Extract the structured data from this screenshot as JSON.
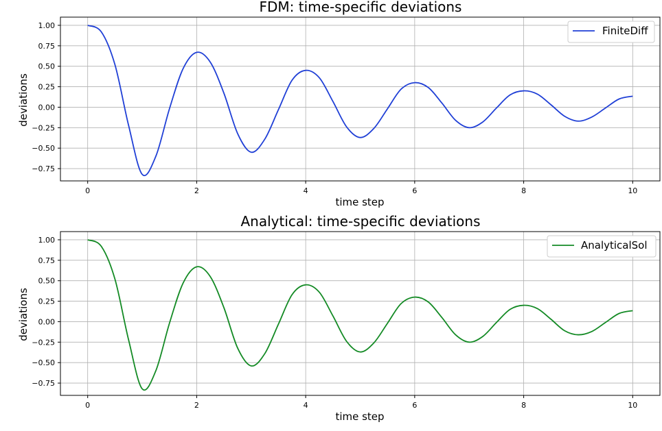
{
  "chart_data": [
    {
      "type": "line",
      "title": "FDM: time-specific deviations",
      "xlabel": "time step",
      "ylabel": "deviations",
      "xlim": [
        -0.5,
        10.5
      ],
      "ylim": [
        -0.9,
        1.1
      ],
      "xticks": [
        "0",
        "2",
        "4",
        "6",
        "8",
        "10"
      ],
      "yticks": [
        "1.00",
        "0.75",
        "0.50",
        "0.25",
        "0.00",
        "−0.25",
        "−0.50",
        "−0.75"
      ],
      "grid": true,
      "legend_position": "top-right",
      "series": [
        {
          "name": "FiniteDiff",
          "color": "#1f3fd6",
          "points": [
            [
              0,
              1.0
            ],
            [
              0.25,
              0.92
            ],
            [
              0.5,
              0.52
            ],
            [
              0.75,
              -0.22
            ],
            [
              1.0,
              -0.82
            ],
            [
              1.25,
              -0.6
            ],
            [
              1.5,
              -0.02
            ],
            [
              1.75,
              0.47
            ],
            [
              2.0,
              0.67
            ],
            [
              2.25,
              0.55
            ],
            [
              2.5,
              0.17
            ],
            [
              2.75,
              -0.32
            ],
            [
              3.0,
              -0.55
            ],
            [
              3.25,
              -0.39
            ],
            [
              3.5,
              -0.03
            ],
            [
              3.75,
              0.33
            ],
            [
              4.0,
              0.45
            ],
            [
              4.25,
              0.36
            ],
            [
              4.5,
              0.07
            ],
            [
              4.75,
              -0.24
            ],
            [
              5.0,
              -0.37
            ],
            [
              5.25,
              -0.26
            ],
            [
              5.5,
              -0.02
            ],
            [
              5.75,
              0.22
            ],
            [
              6.0,
              0.3
            ],
            [
              6.25,
              0.24
            ],
            [
              6.5,
              0.05
            ],
            [
              6.75,
              -0.16
            ],
            [
              7.0,
              -0.25
            ],
            [
              7.25,
              -0.18
            ],
            [
              7.5,
              -0.01
            ],
            [
              7.75,
              0.15
            ],
            [
              8.0,
              0.2
            ],
            [
              8.25,
              0.16
            ],
            [
              8.5,
              0.03
            ],
            [
              8.75,
              -0.11
            ],
            [
              9.0,
              -0.17
            ],
            [
              9.25,
              -0.12
            ],
            [
              9.5,
              -0.01
            ],
            [
              9.75,
              0.1
            ],
            [
              10.0,
              0.135
            ]
          ]
        }
      ]
    },
    {
      "type": "line",
      "title": "Analytical: time-specific deviations",
      "xlabel": "time step",
      "ylabel": "deviations",
      "xlim": [
        -0.5,
        10.5
      ],
      "ylim": [
        -0.9,
        1.1
      ],
      "xticks": [
        "0",
        "2",
        "4",
        "6",
        "8",
        "10"
      ],
      "yticks": [
        "1.00",
        "0.75",
        "0.50",
        "0.25",
        "0.00",
        "−0.25",
        "−0.50",
        "−0.75"
      ],
      "grid": true,
      "legend_position": "top-right",
      "series": [
        {
          "name": "AnalyticalSol",
          "color": "#138a24",
          "points": [
            [
              0,
              1.0
            ],
            [
              0.25,
              0.92
            ],
            [
              0.5,
              0.52
            ],
            [
              0.75,
              -0.22
            ],
            [
              1.0,
              -0.82
            ],
            [
              1.25,
              -0.6
            ],
            [
              1.5,
              -0.02
            ],
            [
              1.75,
              0.47
            ],
            [
              2.0,
              0.67
            ],
            [
              2.25,
              0.55
            ],
            [
              2.5,
              0.17
            ],
            [
              2.75,
              -0.32
            ],
            [
              3.0,
              -0.54
            ],
            [
              3.25,
              -0.39
            ],
            [
              3.5,
              -0.03
            ],
            [
              3.75,
              0.33
            ],
            [
              4.0,
              0.45
            ],
            [
              4.25,
              0.36
            ],
            [
              4.5,
              0.07
            ],
            [
              4.75,
              -0.24
            ],
            [
              5.0,
              -0.37
            ],
            [
              5.25,
              -0.26
            ],
            [
              5.5,
              -0.02
            ],
            [
              5.75,
              0.22
            ],
            [
              6.0,
              0.3
            ],
            [
              6.25,
              0.24
            ],
            [
              6.5,
              0.05
            ],
            [
              6.75,
              -0.16
            ],
            [
              7.0,
              -0.25
            ],
            [
              7.25,
              -0.18
            ],
            [
              7.5,
              -0.01
            ],
            [
              7.75,
              0.15
            ],
            [
              8.0,
              0.2
            ],
            [
              8.25,
              0.16
            ],
            [
              8.5,
              0.03
            ],
            [
              8.75,
              -0.11
            ],
            [
              9.0,
              -0.16
            ],
            [
              9.25,
              -0.12
            ],
            [
              9.5,
              -0.01
            ],
            [
              9.75,
              0.1
            ],
            [
              10.0,
              0.135
            ]
          ]
        }
      ]
    }
  ]
}
